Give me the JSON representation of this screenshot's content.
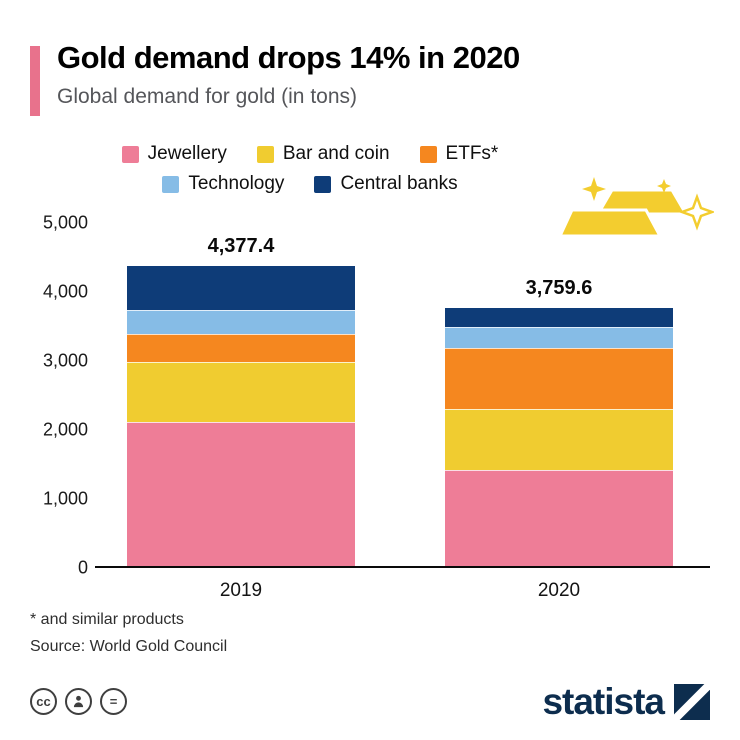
{
  "header": {
    "title": "Gold demand drops 14% in 2020",
    "subtitle": "Global demand for gold (in tons)"
  },
  "chart_data": {
    "type": "bar",
    "stacked": true,
    "title": "Gold demand drops 14% in 2020",
    "subtitle": "Global demand for gold (in tons)",
    "xlabel": "",
    "ylabel": "tons",
    "ylim": [
      0,
      5000
    ],
    "grid": false,
    "legend_position": "top",
    "categories": [
      "2019",
      "2020"
    ],
    "series": [
      {
        "name": "Jewellery",
        "color": "#ee7d97",
        "values": [
          2120,
          1410
        ]
      },
      {
        "name": "Bar and coin",
        "color": "#f0cc30",
        "values": [
          870,
          890
        ]
      },
      {
        "name": "ETFs*",
        "color": "#f5871f",
        "values": [
          400,
          880
        ]
      },
      {
        "name": "Technology",
        "color": "#86bce6",
        "values": [
          330,
          300
        ]
      },
      {
        "name": "Central banks",
        "color": "#0e3c78",
        "values": [
          657.4,
          279.6
        ]
      }
    ],
    "totals": [
      4377.4,
      3759.6
    ],
    "total_labels": [
      "4,377.4",
      "3,759.6"
    ],
    "y_ticks": [
      {
        "value": 0,
        "label": "0"
      },
      {
        "value": 1000,
        "label": "1,000"
      },
      {
        "value": 2000,
        "label": "2,000"
      },
      {
        "value": 3000,
        "label": "3,000"
      },
      {
        "value": 4000,
        "label": "4,000"
      },
      {
        "value": 5000,
        "label": "5,000"
      }
    ],
    "legend_rows": [
      [
        0,
        1,
        2
      ],
      [
        3,
        4
      ]
    ]
  },
  "footnotes": [
    "* and similar products",
    "Source: World Gold Council"
  ],
  "footer": {
    "brand": "statista",
    "license_icons": [
      "cc-icon",
      "attribution-icon",
      "equal-icon"
    ],
    "cc_label": "cc",
    "equal_label": "="
  },
  "colors": {
    "accent_pink": "#e8728c",
    "brand_navy": "#0d2d4e",
    "gold": "#f3cd2f"
  }
}
